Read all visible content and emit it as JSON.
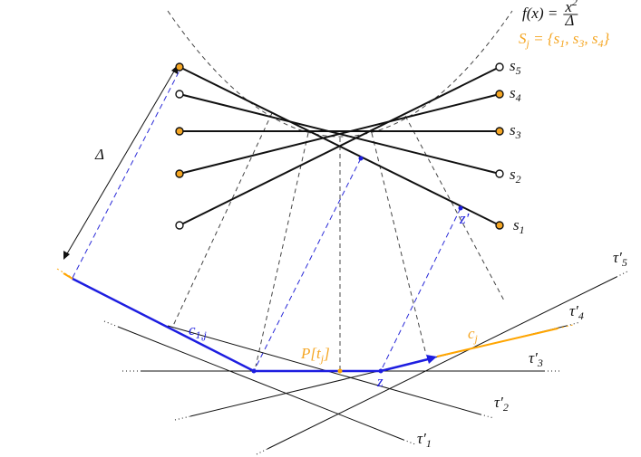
{
  "labels": {
    "function": {
      "runs": [
        {
          "text": "f"
        },
        {
          "text": "(x) ="
        }
      ],
      "numerator": [
        {
          "text": "x"
        },
        {
          "text": "2",
          "sup": true
        }
      ],
      "denominator": "Δ"
    },
    "set": {
      "runs": [
        {
          "text": "S"
        },
        {
          "text": "j",
          "sub": true
        },
        {
          "text": " = {s"
        },
        {
          "text": "1",
          "sub": true
        },
        {
          "text": ", s"
        },
        {
          "text": "3",
          "sub": true
        },
        {
          "text": ", s"
        },
        {
          "text": "4",
          "sub": true
        },
        {
          "text": "}"
        }
      ]
    },
    "s5": {
      "runs": [
        {
          "text": "s"
        },
        {
          "text": "5",
          "sub": true
        }
      ]
    },
    "s4": {
      "runs": [
        {
          "text": "s"
        },
        {
          "text": "4",
          "sub": true
        }
      ]
    },
    "s3": {
      "runs": [
        {
          "text": "s"
        },
        {
          "text": "3",
          "sub": true
        }
      ]
    },
    "s2": {
      "runs": [
        {
          "text": "s"
        },
        {
          "text": "2",
          "sub": true
        }
      ]
    },
    "s1": {
      "runs": [
        {
          "text": "s"
        },
        {
          "text": "1",
          "sub": true
        }
      ]
    },
    "delta": {
      "runs": [
        {
          "text": "Δ"
        }
      ]
    },
    "c1j": {
      "runs": [
        {
          "text": "c"
        },
        {
          "text": "1,j",
          "sub": true
        }
      ]
    },
    "ptj": {
      "runs": [
        {
          "text": "P[t"
        },
        {
          "text": "j",
          "sub": true
        },
        {
          "text": "]"
        }
      ]
    },
    "z": {
      "runs": [
        {
          "text": "z"
        }
      ]
    },
    "zprime": {
      "runs": [
        {
          "text": "z′"
        }
      ]
    },
    "cj": {
      "runs": [
        {
          "text": "c"
        },
        {
          "text": "j",
          "sub": true
        }
      ]
    },
    "tau5": {
      "runs": [
        {
          "text": "τ′"
        },
        {
          "text": "5",
          "sub": true
        }
      ]
    },
    "tau4": {
      "runs": [
        {
          "text": "τ′"
        },
        {
          "text": "4",
          "sub": true
        }
      ]
    },
    "tau3": {
      "runs": [
        {
          "text": "τ′"
        },
        {
          "text": "3",
          "sub": true
        }
      ]
    },
    "tau2": {
      "runs": [
        {
          "text": "τ′"
        },
        {
          "text": "2",
          "sub": true
        }
      ]
    },
    "tau1": {
      "runs": [
        {
          "text": "τ′"
        },
        {
          "text": "1",
          "sub": true
        }
      ]
    }
  }
}
